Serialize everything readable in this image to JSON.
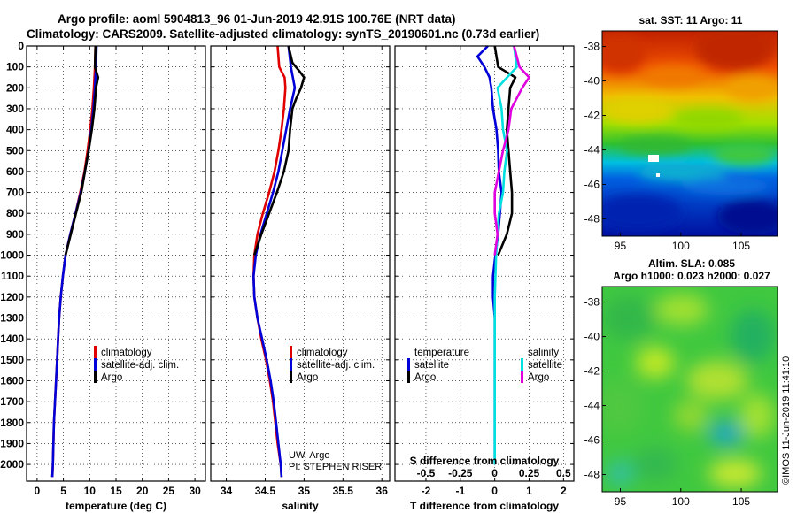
{
  "header": {
    "line1": "Argo profile: aoml 5904813_96 01-Jun-2019 42.91S 100.76E (NRT data)",
    "line2": "Climatology: CARS2009. Satellite-adjusted climatology: synTS_20190601.nc (0.73d earlier)"
  },
  "colors": {
    "climatology": "#e00000",
    "satellite": "#0000d8",
    "argo": "#000000",
    "satellite_s": "#00e0e0",
    "argo_s": "#e000e0"
  },
  "credit": {
    "line1": "UW, Argo",
    "line2": "PI: STEPHEN RISER"
  },
  "stamp": "©IMOS 11-Jun-2019 11:41:10",
  "chart_data": [
    {
      "type": "line",
      "id": "temperature",
      "xlabel": "temperature (deg C)",
      "ylabel": "",
      "xlim": [
        -2,
        32
      ],
      "ylim": [
        2080,
        0
      ],
      "xticks": [
        0,
        5,
        10,
        15,
        20,
        25,
        30
      ],
      "yticks": [
        0,
        100,
        200,
        300,
        400,
        500,
        600,
        700,
        800,
        900,
        1000,
        1100,
        1200,
        1300,
        1400,
        1500,
        1600,
        1700,
        1800,
        1900,
        2000
      ],
      "legend": [
        "climatology",
        "satellite-adj. clim.",
        "Argo"
      ],
      "series": [
        {
          "name": "climatology",
          "color": "#e00000",
          "depth": [
            0,
            100,
            200,
            300,
            400,
            500,
            600,
            700,
            800,
            900,
            1000,
            1100,
            1200,
            1300,
            1400,
            1500,
            1600,
            1700,
            1800,
            1900,
            2000,
            2060
          ],
          "values": [
            11.1,
            11.0,
            10.8,
            10.5,
            10.1,
            9.6,
            9.0,
            8.2,
            7.3,
            6.3,
            5.4,
            4.9,
            4.5,
            4.2,
            4.0,
            3.8,
            3.6,
            3.4,
            3.2,
            3.1,
            3.0,
            2.9
          ]
        },
        {
          "name": "satellite-adj. clim.",
          "color": "#0000d8",
          "depth": [
            0,
            100,
            200,
            300,
            400,
            500,
            600,
            700,
            800,
            900,
            1000,
            1100,
            1200,
            1300,
            1400,
            1500,
            1600,
            1700,
            1800,
            1900,
            2000,
            2060
          ],
          "values": [
            11.3,
            11.2,
            11.0,
            10.7,
            10.3,
            9.8,
            9.1,
            8.3,
            7.3,
            6.3,
            5.4,
            4.9,
            4.5,
            4.2,
            4.0,
            3.8,
            3.6,
            3.4,
            3.2,
            3.1,
            3.0,
            2.9
          ]
        },
        {
          "name": "Argo",
          "color": "#000000",
          "depth": [
            0,
            100,
            150,
            200,
            300,
            400,
            500,
            600,
            700,
            800,
            900,
            1000
          ],
          "values": [
            11.1,
            11.0,
            11.6,
            11.2,
            10.9,
            10.4,
            9.8,
            9.1,
            8.4,
            7.4,
            6.4,
            5.4
          ]
        }
      ]
    },
    {
      "type": "line",
      "id": "salinity",
      "xlabel": "salinity",
      "ylabel": "",
      "xlim": [
        33.8,
        36.1
      ],
      "ylim": [
        2080,
        0
      ],
      "xticks": [
        34,
        34.5,
        35,
        35.5,
        36
      ],
      "legend": [
        "climatology",
        "satellite-adj. clim.",
        "Argo"
      ],
      "series": [
        {
          "name": "climatology",
          "color": "#e00000",
          "depth": [
            0,
            100,
            150,
            200,
            300,
            400,
            500,
            600,
            700,
            800,
            900,
            1000,
            1100,
            1200,
            1300,
            1400,
            1500,
            1600,
            1700,
            1800,
            1900,
            2000,
            2060
          ],
          "values": [
            34.66,
            34.68,
            34.75,
            34.76,
            34.74,
            34.71,
            34.67,
            34.62,
            34.55,
            34.47,
            34.4,
            34.36,
            34.35,
            34.36,
            34.4,
            34.45,
            34.51,
            34.56,
            34.6,
            34.63,
            34.66,
            34.7,
            34.71
          ]
        },
        {
          "name": "satellite-adj. clim.",
          "color": "#0000d8",
          "depth": [
            0,
            100,
            200,
            300,
            400,
            500,
            600,
            700,
            800,
            900,
            1000,
            1100,
            1200,
            1300,
            1400,
            1500,
            1600,
            1700,
            1800,
            1900,
            2000,
            2060
          ],
          "values": [
            34.8,
            34.83,
            34.88,
            34.82,
            34.77,
            34.72,
            34.67,
            34.6,
            34.52,
            34.44,
            34.38,
            34.35,
            34.36,
            34.4,
            34.46,
            34.52,
            34.57,
            34.61,
            34.64,
            34.67,
            34.7,
            34.71
          ]
        },
        {
          "name": "Argo",
          "color": "#000000",
          "depth": [
            0,
            80,
            120,
            150,
            200,
            250,
            300,
            400,
            500,
            600,
            700,
            800,
            900,
            1000
          ],
          "values": [
            34.8,
            34.85,
            34.94,
            35.0,
            34.96,
            34.9,
            34.85,
            34.82,
            34.8,
            34.74,
            34.65,
            34.55,
            34.45,
            34.36
          ]
        }
      ]
    },
    {
      "type": "line",
      "id": "difference",
      "xlabel": "T difference from climatology",
      "x2label": "S difference from climatology",
      "xlim": [
        -2.9,
        2.3
      ],
      "ylim": [
        2080,
        0
      ],
      "xticks": [
        -2,
        -1,
        0,
        1,
        2
      ],
      "x2lim": [
        -0.725,
        0.575
      ],
      "x2ticks": [
        -0.5,
        -0.25,
        0,
        0.25,
        0.5
      ],
      "legend_t_title": "temperature",
      "legend_s_title": "salinity",
      "legend": [
        "satellite",
        "Argo",
        "satellite",
        "Argo"
      ],
      "series": [
        {
          "name": "T satellite",
          "axis": "T",
          "color": "#0000d8",
          "depth": [
            0,
            50,
            100,
            150,
            200,
            300,
            400,
            500,
            600,
            700,
            800,
            900,
            1000,
            1100,
            1200,
            1300,
            1400,
            1600,
            1800,
            2000
          ],
          "values": [
            -0.2,
            -0.5,
            -0.3,
            -0.15,
            -0.1,
            -0.05,
            0.05,
            0.1,
            0.12,
            0.2,
            0.15,
            0.1,
            0.02,
            -0.05,
            -0.05,
            0.0,
            0.0,
            0.0,
            0.0,
            0.0
          ]
        },
        {
          "name": "T Argo",
          "axis": "T",
          "color": "#000000",
          "depth": [
            0,
            100,
            150,
            200,
            300,
            400,
            500,
            600,
            700,
            800,
            900,
            1000
          ],
          "values": [
            0.0,
            0.1,
            0.6,
            0.45,
            0.4,
            0.35,
            0.4,
            0.45,
            0.5,
            0.5,
            0.35,
            0.1
          ]
        },
        {
          "name": "S satellite",
          "axis": "S",
          "color": "#00e0e0",
          "depth": [
            0,
            100,
            200,
            300,
            400,
            500,
            600,
            700,
            800,
            1000,
            1200,
            1500,
            2000
          ],
          "values": [
            0.14,
            0.16,
            0.02,
            0.05,
            0.06,
            0.09,
            0.07,
            0.06,
            0.03,
            0.01,
            0.0,
            0.0,
            0.0
          ]
        },
        {
          "name": "S Argo",
          "axis": "S",
          "color": "#e000e0",
          "depth": [
            0,
            100,
            150,
            200,
            300,
            400,
            500,
            600,
            700,
            800,
            900,
            1000
          ],
          "values": [
            0.14,
            0.18,
            0.25,
            0.2,
            0.12,
            0.1,
            0.06,
            0.03,
            0.0,
            0.0,
            0.02,
            0.0
          ]
        }
      ]
    },
    {
      "type": "heatmap",
      "id": "sst_map",
      "title": "sat. SST: 11 Argo: 11",
      "xticks": [
        95,
        100,
        105
      ],
      "yticks": [
        -38,
        -40,
        -42,
        -44,
        -46,
        -48
      ],
      "xlim": [
        93.5,
        108
      ],
      "ylim": [
        -49,
        -37.1
      ]
    },
    {
      "type": "heatmap",
      "id": "sla_map",
      "title": "Altim. SLA: 0.085",
      "subtitle": "Argo h1000: 0.023 h2000: 0.027",
      "xticks": [
        95,
        100,
        105
      ],
      "yticks": [
        -38,
        -40,
        -42,
        -44,
        -46,
        -48
      ],
      "xlim": [
        93.5,
        108
      ],
      "ylim": [
        -49,
        -37.1
      ]
    }
  ]
}
